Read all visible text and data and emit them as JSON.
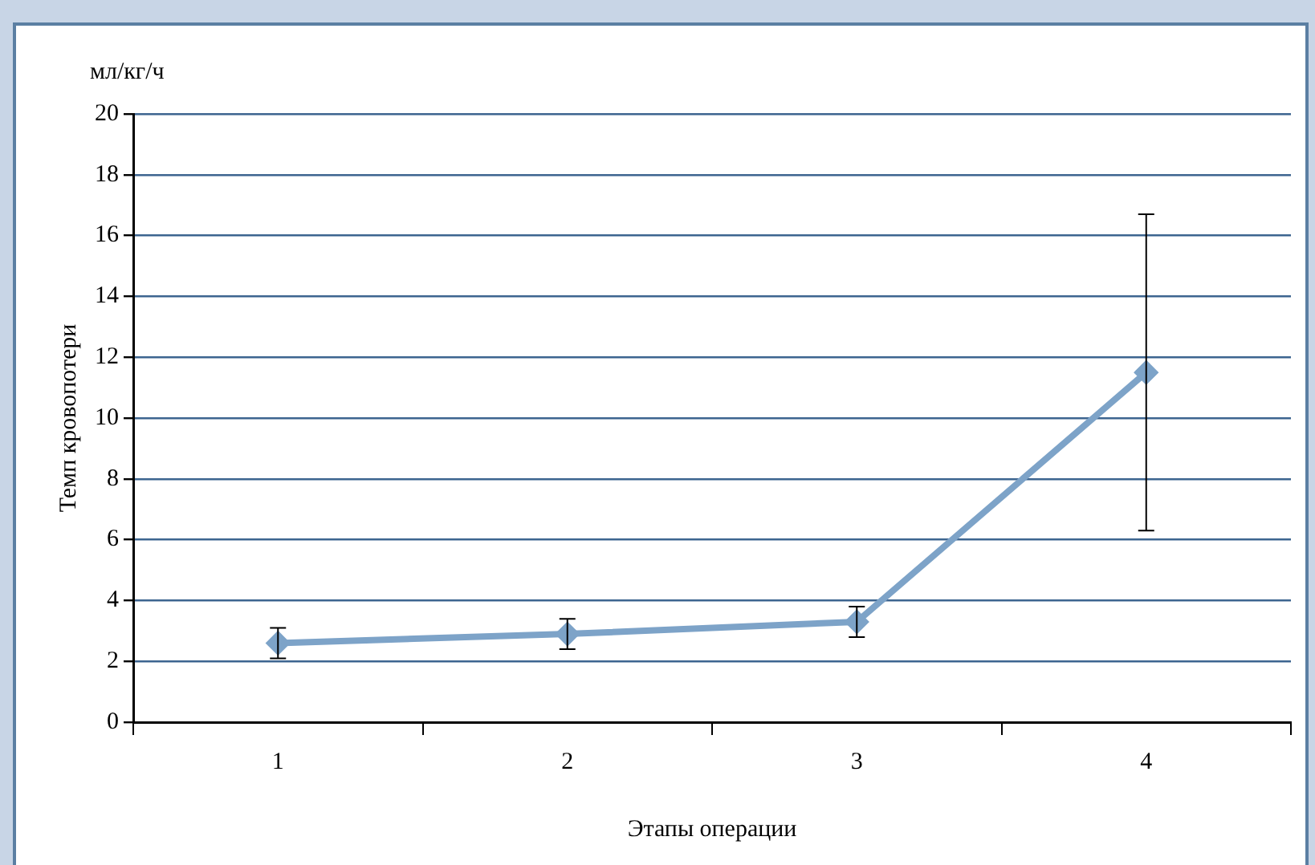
{
  "chart_data": {
    "type": "line",
    "xlabel": "Этапы операции",
    "ylabel": "Темп кровопотери",
    "annotations": [
      "мл/кг/ч"
    ],
    "categories": [
      "1",
      "2",
      "3",
      "4"
    ],
    "series": [
      {
        "color": "#7da3c8",
        "values": [
          2.6,
          2.9,
          3.3,
          11.5
        ],
        "errors": [
          0.5,
          0.5,
          0.5,
          5.2
        ]
      }
    ],
    "ylim": [
      0,
      20
    ],
    "yticks": [
      0,
      2,
      4,
      6,
      8,
      10,
      12,
      14,
      16,
      18,
      20
    ],
    "grid": "y",
    "legend": false,
    "marker": "diamond",
    "line_style": "solid"
  }
}
